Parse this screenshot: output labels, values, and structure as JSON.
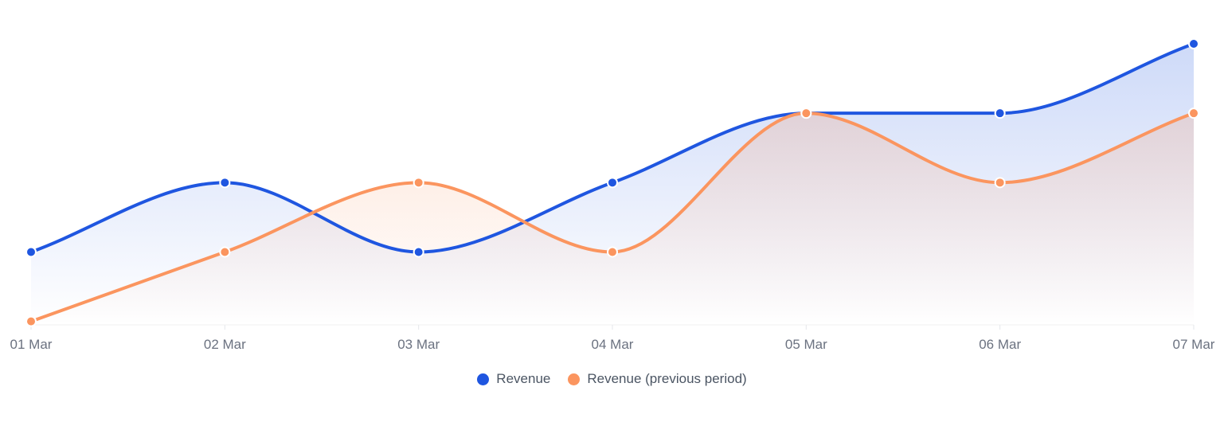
{
  "chart_data": {
    "type": "area",
    "categories": [
      "01 Mar",
      "02 Mar",
      "03 Mar",
      "04 Mar",
      "05 Mar",
      "06 Mar",
      "07 Mar"
    ],
    "series": [
      {
        "name": "Revenue",
        "color": "#1f56e0",
        "values": [
          4,
          5,
          4,
          5,
          6,
          6,
          7
        ]
      },
      {
        "name": "Revenue (previous period)",
        "color": "#fb955f",
        "values": [
          3,
          4,
          5,
          4,
          6,
          5,
          6
        ]
      }
    ],
    "ylim": [
      2.95,
      7.6
    ],
    "grid": false,
    "legend": "bottom-center",
    "title": "",
    "xlabel": "",
    "ylabel": ""
  }
}
